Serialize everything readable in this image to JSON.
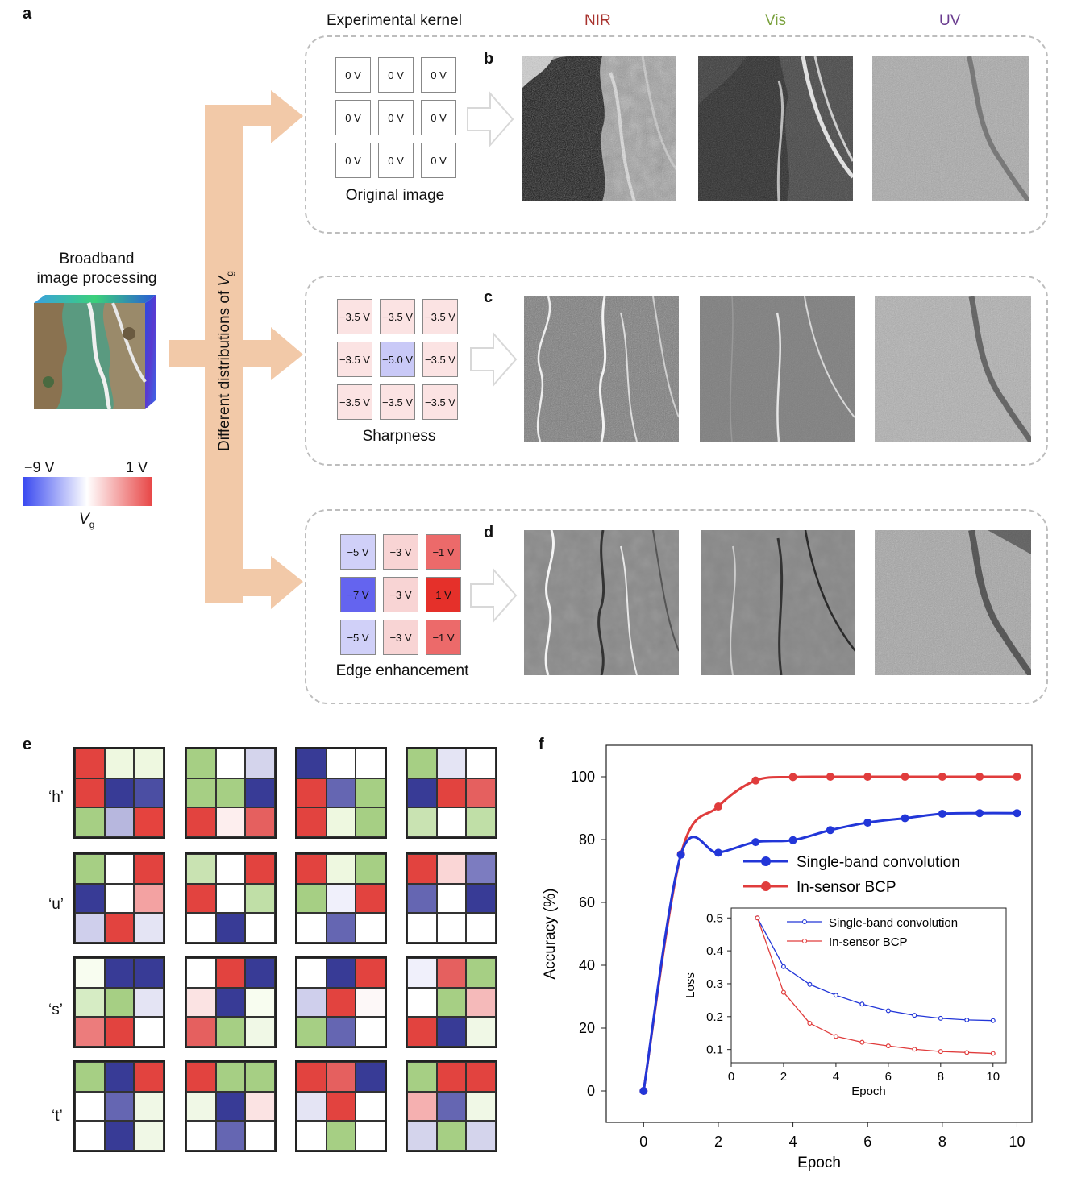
{
  "panels": {
    "a": "a",
    "b": "b",
    "c": "c",
    "d": "d",
    "e": "e",
    "f": "f"
  },
  "header": {
    "kernel_title": "Experimental kernel",
    "nir": "NIR",
    "vis": "Vis",
    "uv": "UV"
  },
  "colors": {
    "nir": "#a8322d",
    "vis": "#7aa13d",
    "uv": "#6a3c8f",
    "arrow": "#f2c9a8",
    "cube_green": "#5a9a80",
    "cube_blue": "#3b4fd8"
  },
  "left": {
    "title_line1": "Broadband",
    "title_line2": "image processing",
    "scale_min": "−9 V",
    "scale_max": "1 V",
    "scale_label": "V",
    "scale_sub": "g"
  },
  "vertical_label": {
    "text": "Different distributions of ",
    "var": "V",
    "sub": "g"
  },
  "kernels": [
    {
      "name": "Original image",
      "cells": [
        "0 V",
        "0 V",
        "0 V",
        "0 V",
        "0 V",
        "0 V",
        "0 V",
        "0 V",
        "0 V"
      ],
      "colors": [
        "#ffffff",
        "#ffffff",
        "#ffffff",
        "#ffffff",
        "#ffffff",
        "#ffffff",
        "#ffffff",
        "#ffffff",
        "#ffffff"
      ]
    },
    {
      "name": "Sharpness",
      "cells": [
        "−3.5 V",
        "−3.5 V",
        "−3.5 V",
        "−3.5 V",
        "−5.0 V",
        "−3.5 V",
        "−3.5 V",
        "−3.5 V",
        "−3.5 V"
      ],
      "colors": [
        "#fbe3e3",
        "#fbe3e3",
        "#fbe3e3",
        "#fbe3e3",
        "#c9c9f7",
        "#fbe3e3",
        "#fbe3e3",
        "#fbe3e3",
        "#fbe3e3"
      ]
    },
    {
      "name": "Edge enhancement",
      "cells": [
        "−5 V",
        "−3 V",
        "−1 V",
        "−7 V",
        "−3 V",
        "1 V",
        "−5 V",
        "−3 V",
        "−1 V"
      ],
      "colors": [
        "#d0d0f8",
        "#f8d4d4",
        "#ec6a6a",
        "#6464ef",
        "#f8d4d4",
        "#e5302a",
        "#d0d0f8",
        "#f8d4d4",
        "#ec6a6a"
      ]
    }
  ],
  "grids": {
    "labels": [
      "‘h’",
      "‘u’",
      "‘s’",
      "‘t’"
    ],
    "rows": [
      [
        [
          "#e2433f",
          "#eef8e0",
          "#eef8e0",
          "#e2433f",
          "#383b96",
          "#4b4ea3",
          "#a6cf84",
          "#b7b7de",
          "#e5433e"
        ],
        [
          "#a6cf84",
          "#ffffff",
          "#d4d4ec",
          "#a6cf84",
          "#a6cf84",
          "#383b96",
          "#e2433f",
          "#fdeeee",
          "#e5605f"
        ],
        [
          "#383b96",
          "#ffffff",
          "#ffffff",
          "#e2433f",
          "#6566b2",
          "#a6cf84",
          "#e2433f",
          "#eef8e0",
          "#a6cf84"
        ],
        [
          "#a6cf84",
          "#e4e4f4",
          "#ffffff",
          "#383b96",
          "#e2433f",
          "#e5605f",
          "#c9e3b2",
          "#ffffff",
          "#c0dfa7"
        ]
      ],
      [
        [
          "#a6cf84",
          "#ffffff",
          "#e2433f",
          "#383b96",
          "#ffffff",
          "#f3a2a2",
          "#cfcfec",
          "#e2433f",
          "#e4e4f4"
        ],
        [
          "#c9e3b2",
          "#ffffff",
          "#e2433f",
          "#e2433f",
          "#ffffff",
          "#c0dfa7",
          "#ffffff",
          "#383b96",
          "#ffffff"
        ],
        [
          "#e2433f",
          "#eef8e0",
          "#a6cf84",
          "#a6cf84",
          "#f0f0fb",
          "#e2433f",
          "#ffffff",
          "#6566b2",
          "#ffffff"
        ],
        [
          "#e2433f",
          "#fad6d6",
          "#7c7cc0",
          "#6566b2",
          "#ffffff",
          "#383b96",
          "#ffffff",
          "#ffffff",
          "#ffffff"
        ]
      ],
      [
        [
          "#f8fdf0",
          "#383b96",
          "#383b96",
          "#d6ecc4",
          "#a6cf84",
          "#e4e4f4",
          "#ec7c7c",
          "#e2433f",
          "#ffffff"
        ],
        [
          "#ffffff",
          "#e2433f",
          "#383b96",
          "#fbe3e3",
          "#383b96",
          "#f8fdf0",
          "#e5605f",
          "#a6cf84",
          "#f0f8e6"
        ],
        [
          "#ffffff",
          "#383b96",
          "#e2433f",
          "#cfcfec",
          "#e2433f",
          "#fdf8f8",
          "#a6cf84",
          "#6566b2",
          "#ffffff"
        ],
        [
          "#f0f0fb",
          "#e5605f",
          "#a6cf84",
          "#ffffff",
          "#a6cf84",
          "#f5baba",
          "#e2433f",
          "#383b96",
          "#f0f8e6"
        ]
      ],
      [
        [
          "#a6cf84",
          "#383b96",
          "#e2433f",
          "#ffffff",
          "#6566b2",
          "#f0f8e6",
          "#ffffff",
          "#383b96",
          "#f0f8e6"
        ],
        [
          "#e2433f",
          "#a6cf84",
          "#a6cf84",
          "#f0f8e6",
          "#383b96",
          "#fbe3e3",
          "#ffffff",
          "#6566b2",
          "#ffffff"
        ],
        [
          "#e2433f",
          "#e5605f",
          "#383b96",
          "#e4e4f4",
          "#e2433f",
          "#ffffff",
          "#ffffff",
          "#a6cf84",
          "#ffffff"
        ],
        [
          "#a6cf84",
          "#e2433f",
          "#e2433f",
          "#f5b0b0",
          "#6566b2",
          "#f0f8e6",
          "#d4d4ec",
          "#a6cf84",
          "#d4d4ec"
        ]
      ]
    ]
  },
  "chart_data": [
    {
      "type": "line",
      "xlabel": "Epoch",
      "ylabel": "Accuracy (%)",
      "xlim": [
        -1,
        10.4
      ],
      "ylim": [
        -10,
        110
      ],
      "xticks": [
        0,
        2,
        4,
        6,
        8,
        10
      ],
      "yticks": [
        0,
        20,
        40,
        60,
        80,
        100
      ],
      "series": [
        {
          "name": "Single-band convolution",
          "color": "#2236d8",
          "x": [
            0,
            1,
            2,
            3,
            4,
            5,
            6,
            7,
            8,
            9,
            10
          ],
          "y": [
            0,
            75.2,
            75.8,
            79.2,
            79.8,
            83.0,
            85.4,
            86.8,
            88.2,
            88.4,
            88.4
          ]
        },
        {
          "name": "In-sensor BCP",
          "color": "#e03c3c",
          "x": [
            0,
            1,
            2,
            3,
            4,
            5,
            6,
            7,
            8,
            9,
            10
          ],
          "y": [
            0,
            75.3,
            90.5,
            98.8,
            99.9,
            100,
            100,
            100,
            100,
            100,
            100
          ]
        }
      ]
    },
    {
      "type": "line",
      "xlabel": "Epoch",
      "ylabel": "Loss",
      "xlim": [
        0,
        10.5
      ],
      "ylim": [
        0.06,
        0.53
      ],
      "xticks": [
        0,
        2,
        4,
        6,
        8,
        10
      ],
      "yticks": [
        0.1,
        0.2,
        0.3,
        0.4,
        0.5
      ],
      "series": [
        {
          "name": "Single-band convolution",
          "color": "#2236d8",
          "x": [
            1,
            2,
            3,
            4,
            5,
            6,
            7,
            8,
            9,
            10
          ],
          "y": [
            0.5,
            0.352,
            0.298,
            0.265,
            0.238,
            0.218,
            0.204,
            0.195,
            0.19,
            0.188
          ]
        },
        {
          "name": "In-sensor BCP",
          "color": "#e03c3c",
          "x": [
            1,
            2,
            3,
            4,
            5,
            6,
            7,
            8,
            9,
            10
          ],
          "y": [
            0.5,
            0.274,
            0.18,
            0.14,
            0.122,
            0.111,
            0.101,
            0.094,
            0.091,
            0.088
          ]
        }
      ]
    }
  ]
}
